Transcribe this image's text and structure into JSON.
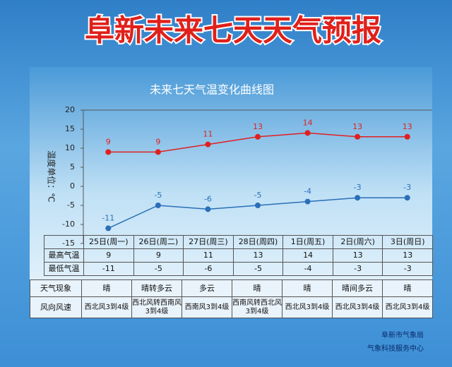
{
  "title": "阜新未来七天天气预报",
  "chart_data": {
    "type": "line",
    "title": "未来七天气温变化曲线图",
    "y_label": "温度单位：℃",
    "categories": [
      "25日(周一)",
      "26日(周二)",
      "27日(周三)",
      "28日(周四)",
      "1日(周五)",
      "2日(周六)",
      "3日(周日)"
    ],
    "series": [
      {
        "name": "最高气温",
        "color": "#e02020",
        "values": [
          9,
          9,
          11,
          13,
          14,
          13,
          13
        ]
      },
      {
        "name": "最低气温",
        "color": "#2a6fb8",
        "values": [
          -11,
          -5,
          -6,
          -5,
          -4,
          -3,
          -3
        ]
      }
    ],
    "ylim": [
      -15,
      20
    ],
    "yticks": [
      -15,
      -10,
      -5,
      0,
      5,
      10,
      15,
      20
    ]
  },
  "table": {
    "weather_label": "天气现象",
    "weather": [
      "晴",
      "晴转多云",
      "多云",
      "晴",
      "晴",
      "晴间多云",
      "晴"
    ],
    "wind_label": "风向风速",
    "wind": [
      "西北风3到4级",
      "西北风转西南风3到4级",
      "西南风3到4级",
      "西南风转西北风3到4级",
      "西北风3到4级",
      "西北风3到4级",
      "西北风3到4级"
    ]
  },
  "footer": [
    "阜新市气象局",
    "气象科技服务中心"
  ]
}
